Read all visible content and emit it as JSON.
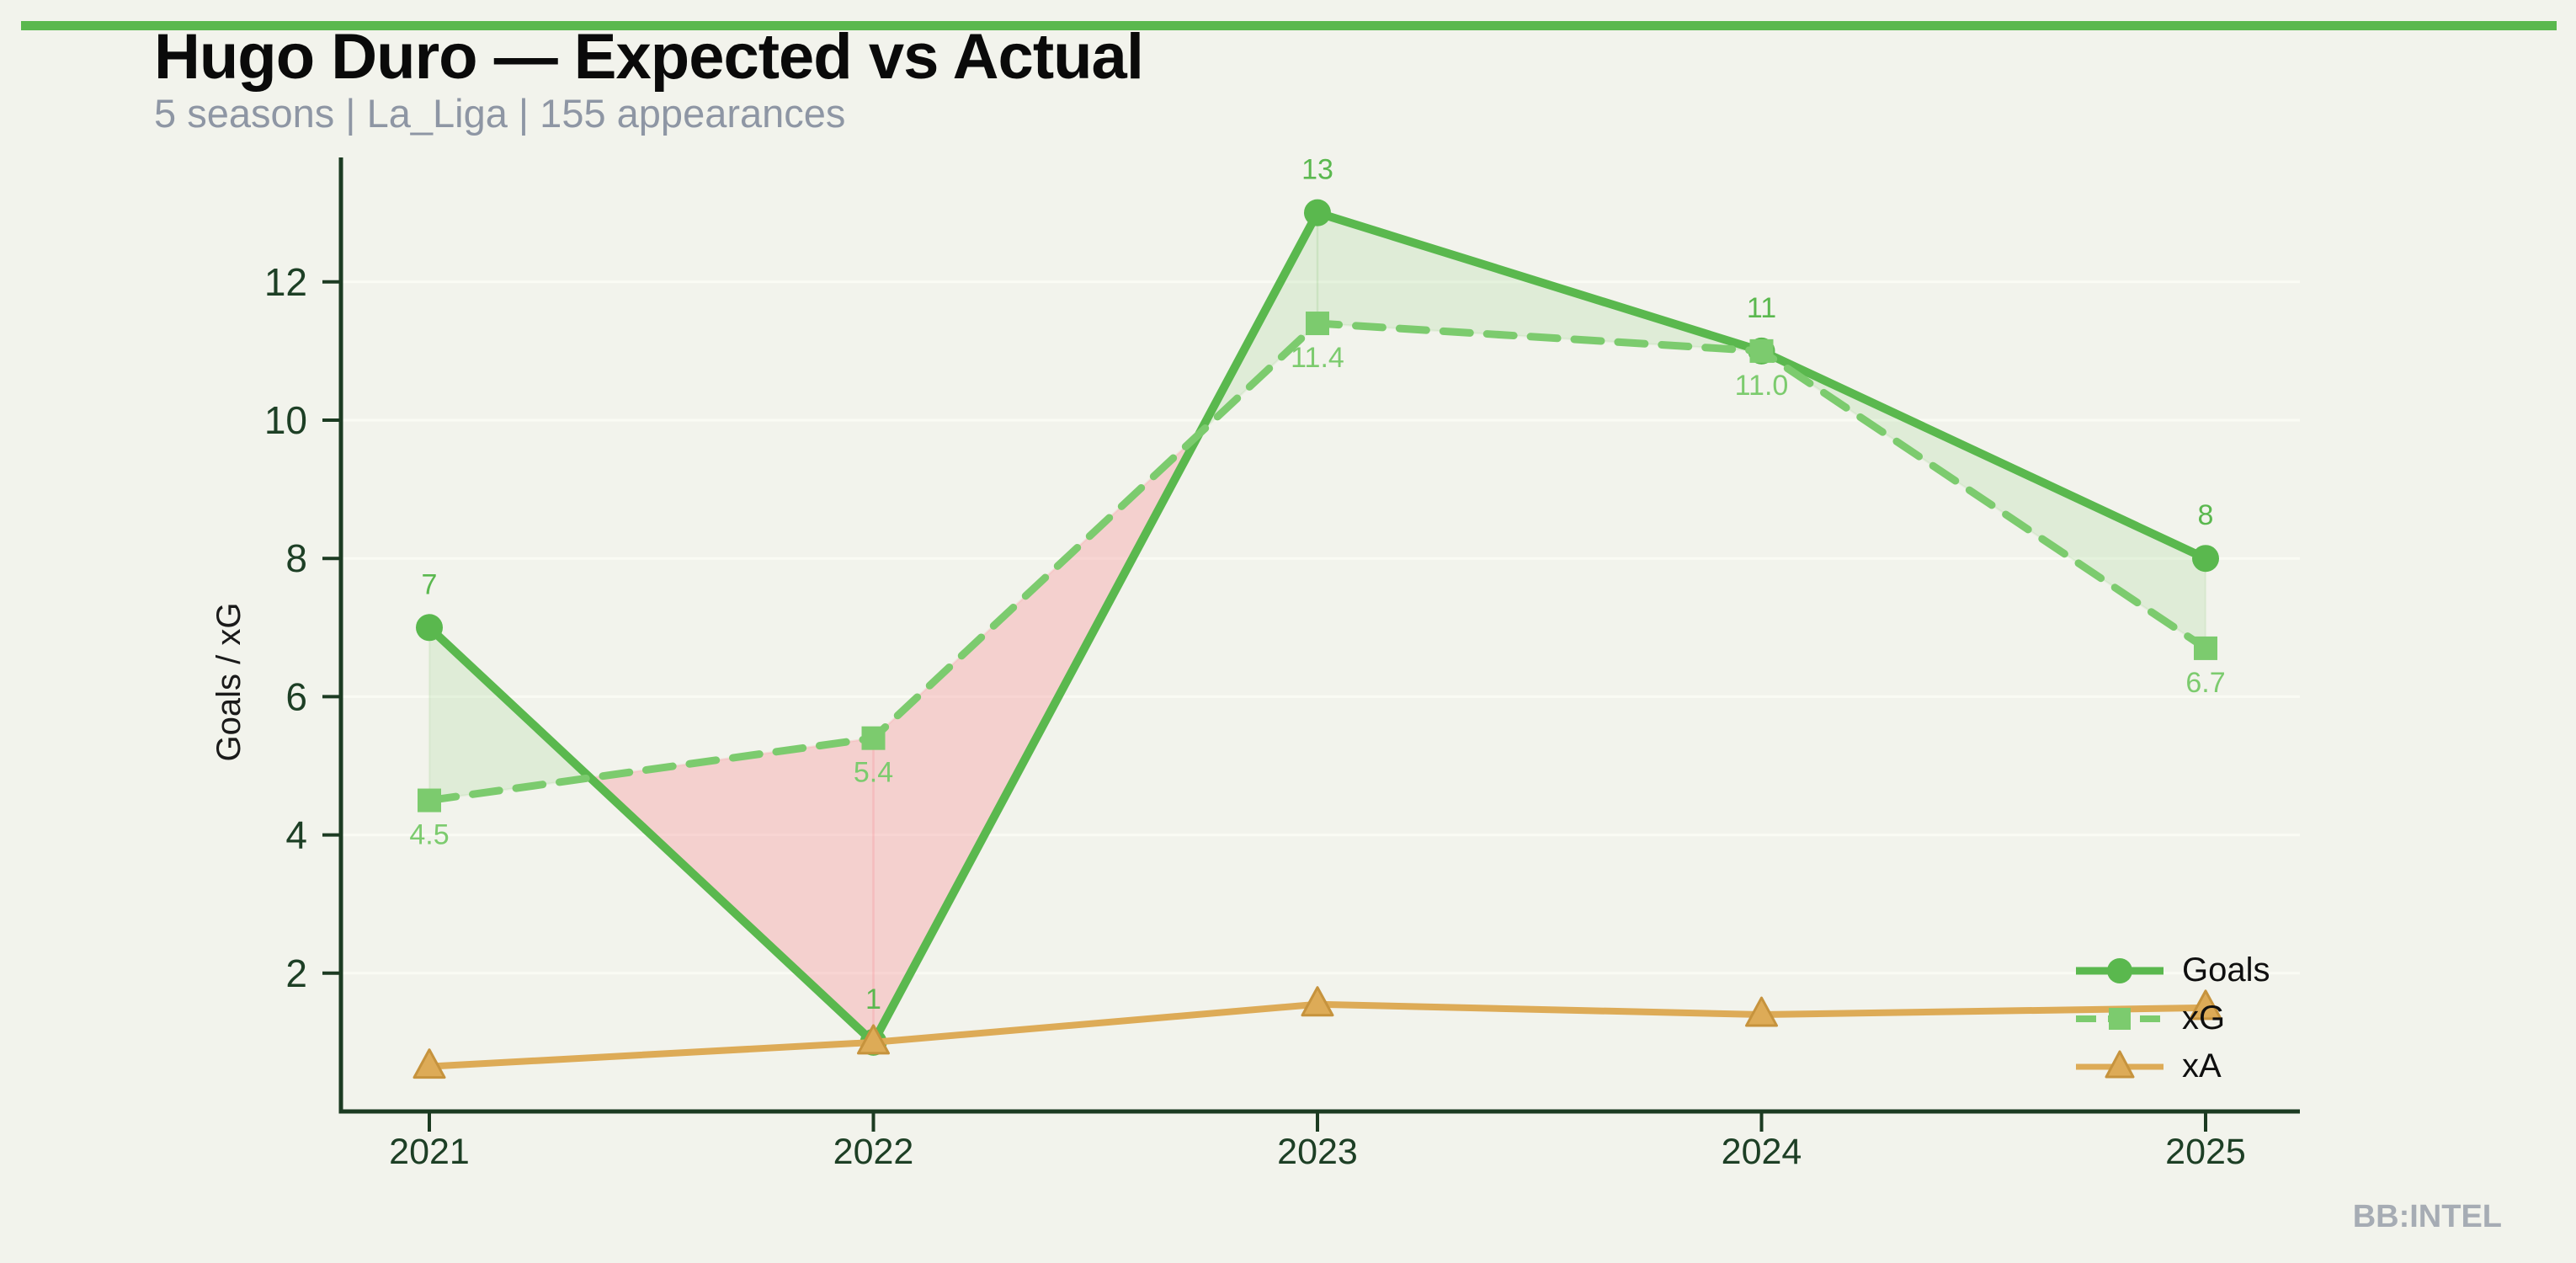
{
  "page": {
    "background_color": "#f2f3ec",
    "accent_bar_color": "#5ab84e",
    "watermark": "BB:INTEL",
    "watermark_color": "#a6acb4"
  },
  "header": {
    "title": "Hugo Duro — Expected vs Actual",
    "subtitle": "5 seasons | La_Liga | 155 appearances"
  },
  "chart_data": {
    "type": "line",
    "title": "Hugo Duro — Expected vs Actual",
    "subtitle": "5 seasons | La_Liga | 155 appearances",
    "categories": [
      "2021",
      "2022",
      "2023",
      "2024",
      "2025"
    ],
    "series": [
      {
        "name": "Goals",
        "values": [
          7,
          1,
          13,
          11,
          8
        ],
        "point_labels": [
          "7",
          "1",
          "13",
          "11",
          "8"
        ],
        "label_position": "above",
        "color": "#5ab84e",
        "marker": "circle",
        "line_style": "solid"
      },
      {
        "name": "xG",
        "values": [
          4.5,
          5.4,
          11.4,
          11.0,
          6.7
        ],
        "point_labels": [
          "4.5",
          "5.4",
          "11.4",
          "11.0",
          "6.7"
        ],
        "label_position": "below",
        "color": "#7ccb6e",
        "marker": "square",
        "line_style": "dashed"
      },
      {
        "name": "xA",
        "values": [
          0.65,
          1.0,
          1.55,
          1.4,
          1.5
        ],
        "point_labels": [],
        "label_position": "none",
        "color": "#ddab57",
        "marker": "triangle",
        "marker_edge_color": "#c6933d",
        "line_style": "solid"
      }
    ],
    "xlabel": "",
    "ylabel": "Goals / xG",
    "ylim": [
      0,
      13.8
    ],
    "yticks": [
      2,
      4,
      6,
      8,
      10,
      12
    ],
    "grid": true,
    "gridline_color": "#fafbf4",
    "axis_color": "#1c3b22",
    "tick_label_color": "#1d3f25",
    "ylabel_color": "#1a1a1a",
    "legend_position": "lower right",
    "fill_between": {
      "overperform_color": "rgba(122,196,106,0.16)",
      "underperform_color": "rgba(246,166,170,0.45)"
    }
  }
}
